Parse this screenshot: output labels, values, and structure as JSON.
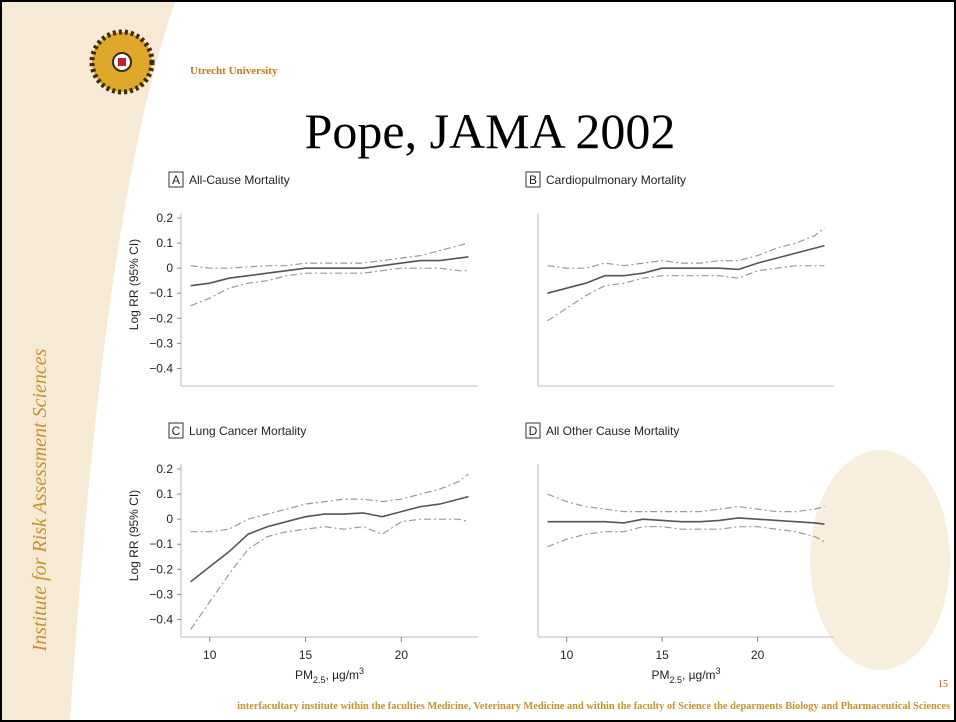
{
  "slide": {
    "university": "Utrecht University",
    "title": "Pope, JAMA 2002",
    "sidebar": "Institute for Risk Assessment Sciences",
    "footer": "interfacultary institute within the faculties Medicine, Veterinary Medicine and within the faculty of Science the deparments Biology and Pharmaceutical Sciences",
    "page_number": "15"
  },
  "chart_data": [
    {
      "type": "line",
      "panel": "A",
      "title": "All-Cause Mortality",
      "ylabel": "Log RR (95% CI)",
      "x": [
        9,
        10,
        11,
        12,
        13,
        14,
        15,
        16,
        17,
        18,
        19,
        20,
        21,
        22,
        23,
        23.5
      ],
      "xlim": [
        8.5,
        24
      ],
      "ylim": [
        -0.47,
        0.22
      ],
      "yticks": [
        0.2,
        0.1,
        0,
        {
          "value": -0.1,
          "label": "−0.1"
        },
        {
          "value": -0.2,
          "label": "−0.2"
        },
        {
          "value": -0.3,
          "label": "−0.3"
        },
        {
          "value": -0.4,
          "label": "−0.4"
        }
      ],
      "series": [
        {
          "color": "#555555",
          "style": "solid",
          "values": [
            -0.07,
            -0.06,
            -0.04,
            -0.03,
            -0.02,
            -0.01,
            0,
            0,
            0,
            0,
            0.01,
            0.02,
            0.03,
            0.03,
            0.04,
            0.045
          ]
        },
        {
          "color": "#999999",
          "style": "dashed",
          "values": [
            0.01,
            0,
            0,
            0.005,
            0.01,
            0.01,
            0.02,
            0.02,
            0.02,
            0.02,
            0.03,
            0.04,
            0.05,
            0.07,
            0.09,
            0.1
          ]
        },
        {
          "color": "#999999",
          "style": "dashed",
          "values": [
            -0.15,
            -0.12,
            -0.08,
            -0.06,
            -0.05,
            -0.03,
            -0.02,
            -0.02,
            -0.02,
            -0.02,
            -0.01,
            0,
            0,
            0,
            -0.01,
            -0.01
          ]
        }
      ]
    },
    {
      "type": "line",
      "panel": "B",
      "title": "Cardiopulmonary Mortality",
      "x": [
        9,
        10,
        11,
        12,
        13,
        14,
        15,
        16,
        17,
        18,
        19,
        20,
        21,
        22,
        23,
        23.5
      ],
      "xlim": [
        8.5,
        24
      ],
      "ylim": [
        -0.47,
        0.22
      ],
      "series": [
        {
          "color": "#555555",
          "style": "solid",
          "values": [
            -0.1,
            -0.08,
            -0.06,
            -0.03,
            -0.03,
            -0.02,
            0,
            0,
            0,
            0,
            -0.005,
            0.02,
            0.04,
            0.06,
            0.08,
            0.09
          ]
        },
        {
          "color": "#999999",
          "style": "dashed",
          "values": [
            0.01,
            0,
            0,
            0.02,
            0.01,
            0.02,
            0.03,
            0.02,
            0.02,
            0.03,
            0.03,
            0.05,
            0.08,
            0.1,
            0.13,
            0.16
          ]
        },
        {
          "color": "#999999",
          "style": "dashed",
          "values": [
            -0.21,
            -0.16,
            -0.11,
            -0.07,
            -0.06,
            -0.04,
            -0.03,
            -0.03,
            -0.03,
            -0.03,
            -0.04,
            -0.01,
            0,
            0.01,
            0.01,
            0.01
          ]
        }
      ]
    },
    {
      "type": "line",
      "panel": "C",
      "title": "Lung Cancer Mortality",
      "ylabel": "Log RR (95% CI)",
      "xlabel": {
        "base": "PM",
        "sub": "2.5",
        "rest": ", µg/m",
        "sup": "3"
      },
      "x": [
        9,
        10,
        11,
        12,
        13,
        14,
        15,
        16,
        17,
        18,
        19,
        20,
        21,
        22,
        23,
        23.5
      ],
      "xlim": [
        8.5,
        24
      ],
      "xticks": [
        10,
        15,
        20
      ],
      "ylim": [
        -0.47,
        0.22
      ],
      "yticks": [
        0.2,
        0.1,
        0,
        {
          "value": -0.1,
          "label": "−0.1"
        },
        {
          "value": -0.2,
          "label": "−0.2"
        },
        {
          "value": -0.3,
          "label": "−0.3"
        },
        {
          "value": -0.4,
          "label": "−0.4"
        }
      ],
      "series": [
        {
          "color": "#555555",
          "style": "solid",
          "values": [
            -0.25,
            -0.19,
            -0.13,
            -0.06,
            -0.03,
            -0.01,
            0.01,
            0.02,
            0.02,
            0.025,
            0.01,
            0.03,
            0.05,
            0.06,
            0.08,
            0.09
          ]
        },
        {
          "color": "#999999",
          "style": "dashed",
          "values": [
            -0.05,
            -0.05,
            -0.04,
            0,
            0.02,
            0.04,
            0.06,
            0.07,
            0.08,
            0.08,
            0.07,
            0.08,
            0.1,
            0.12,
            0.15,
            0.18
          ]
        },
        {
          "color": "#999999",
          "style": "dashed",
          "values": [
            -0.44,
            -0.33,
            -0.22,
            -0.12,
            -0.07,
            -0.05,
            -0.04,
            -0.03,
            -0.04,
            -0.03,
            -0.06,
            -0.01,
            0,
            0,
            0,
            -0.01
          ]
        }
      ]
    },
    {
      "type": "line",
      "panel": "D",
      "title": "All Other Cause Mortality",
      "xlabel": {
        "base": "PM",
        "sub": "2.5",
        "rest": ", µg/m",
        "sup": "3"
      },
      "x": [
        9,
        10,
        11,
        12,
        13,
        14,
        15,
        16,
        17,
        18,
        19,
        20,
        21,
        22,
        23,
        23.5
      ],
      "xlim": [
        8.5,
        24
      ],
      "xticks": [
        10,
        15,
        20
      ],
      "ylim": [
        -0.47,
        0.22
      ],
      "series": [
        {
          "color": "#555555",
          "style": "solid",
          "values": [
            -0.01,
            -0.01,
            -0.01,
            -0.01,
            -0.015,
            0,
            -0.005,
            -0.01,
            -0.01,
            -0.005,
            0.005,
            0,
            -0.005,
            -0.01,
            -0.015,
            -0.02
          ]
        },
        {
          "color": "#999999",
          "style": "dashed",
          "values": [
            0.1,
            0.07,
            0.05,
            0.04,
            0.03,
            0.03,
            0.03,
            0.03,
            0.03,
            0.04,
            0.05,
            0.04,
            0.03,
            0.03,
            0.04,
            0.05
          ]
        },
        {
          "color": "#999999",
          "style": "dashed",
          "values": [
            -0.11,
            -0.08,
            -0.06,
            -0.05,
            -0.05,
            -0.03,
            -0.03,
            -0.04,
            -0.04,
            -0.04,
            -0.03,
            -0.03,
            -0.04,
            -0.05,
            -0.07,
            -0.09
          ]
        }
      ]
    }
  ]
}
